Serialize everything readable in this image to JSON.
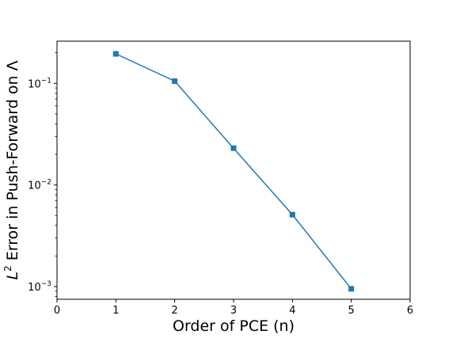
{
  "chart_data": {
    "type": "line",
    "xlabel": "Order of PCE (n)",
    "ylabel_math": "L",
    "ylabel_sup": "2",
    "ylabel_text": " Error in Push-Forward on Λ",
    "yscale": "log",
    "xlim": [
      0,
      6
    ],
    "ylim": [
      0.00075,
      0.26
    ],
    "x_ticks": [
      "0",
      "1",
      "2",
      "3",
      "4",
      "5",
      "6"
    ],
    "y_ticks": [
      {
        "value": 0.1,
        "base": "10",
        "exp": "−1"
      },
      {
        "value": 0.01,
        "base": "10",
        "exp": "−2"
      },
      {
        "value": 0.001,
        "base": "10",
        "exp": "−3"
      }
    ],
    "grid": false,
    "color": "#1f77b4",
    "marker": "square",
    "series": [
      {
        "x": [
          1,
          2,
          3,
          4,
          5
        ],
        "y": [
          0.195,
          0.105,
          0.023,
          0.0051,
          0.00095
        ]
      }
    ]
  }
}
